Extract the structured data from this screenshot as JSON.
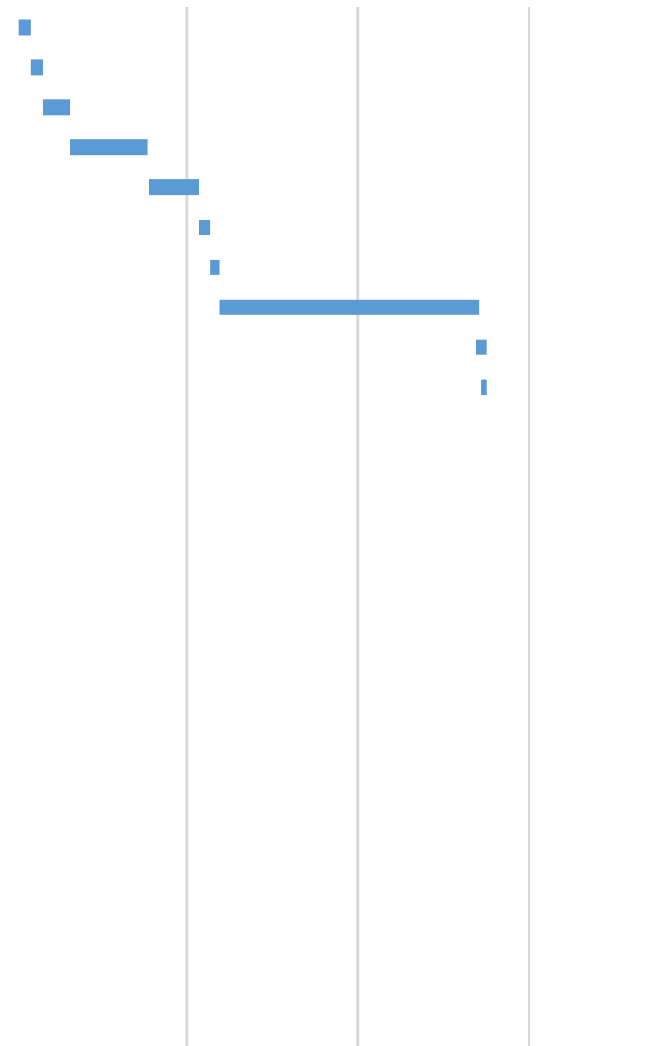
{
  "chart_data": {
    "type": "bar",
    "subtype": "gantt",
    "orientation": "horizontal",
    "title": "",
    "xlabel": "",
    "ylabel": "",
    "x_gridlines": [
      1,
      2,
      3
    ],
    "xlim": [
      -0.09,
      3.8
    ],
    "grid": true,
    "legend": "none",
    "bar_color": "#5B9BD5",
    "grid_color": "#D9D9D9",
    "series": [
      {
        "values": [
          {
            "start": 0.02,
            "end": 0.09
          },
          {
            "start": 0.09,
            "end": 0.16
          },
          {
            "start": 0.16,
            "end": 0.32
          },
          {
            "start": 0.32,
            "end": 0.77
          },
          {
            "start": 0.78,
            "end": 1.07
          },
          {
            "start": 1.07,
            "end": 1.14
          },
          {
            "start": 1.14,
            "end": 1.19
          },
          {
            "start": 1.19,
            "end": 2.71
          },
          {
            "start": 2.69,
            "end": 2.75
          },
          {
            "start": 2.72,
            "end": 2.75
          }
        ]
      }
    ]
  }
}
